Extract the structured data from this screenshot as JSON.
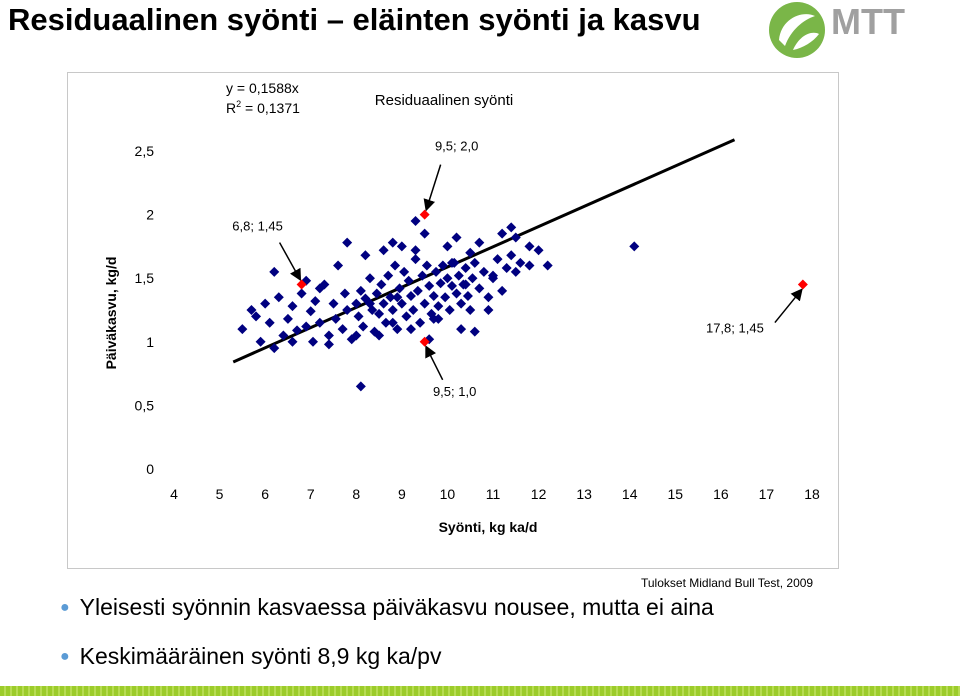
{
  "slide": {
    "title": "Residuaalinen syönti – eläinten syönti ja kasvu",
    "logo_text": "MTT",
    "source_note": "Tulokset Midland Bull Test, 2009",
    "bullets": [
      "Yleisesti syönnin kasvaessa päiväkasvu nousee, mutta ei aina",
      "Keskimääräinen syönti 8,9 kg ka/pv"
    ]
  },
  "colors": {
    "points": "#000080",
    "highlight": "#ff0000",
    "trendline": "#000000",
    "bullet": "#5b9bd5",
    "logo_green": "#7ab648",
    "logo_gray": "#a0a0a0",
    "bottom_bar": "#9ccc2a"
  },
  "chart_data": {
    "type": "scatter",
    "title": "Residuaalinen syönti",
    "xlabel": "Syönti, kg ka/d",
    "ylabel": "Päiväkasvu, kg/d",
    "xlim": [
      4,
      18
    ],
    "ylim": [
      0,
      2.5
    ],
    "x_ticks": [
      "4",
      "5",
      "6",
      "7",
      "8",
      "9",
      "10",
      "11",
      "12",
      "13",
      "14",
      "15",
      "16",
      "17",
      "18"
    ],
    "y_ticks": [
      "0",
      "0,5",
      "1",
      "1,5",
      "2",
      "2,5"
    ],
    "equation": "y = 0,1588x",
    "r_squared_label": "R",
    "r_squared_sup": "2",
    "r_squared_value": " = 0,1371",
    "trendline_slope": 0.1588,
    "grid": false,
    "legend": "none",
    "points": [
      [
        5.5,
        1.1
      ],
      [
        5.7,
        1.25
      ],
      [
        5.9,
        1.0
      ],
      [
        5.8,
        1.2
      ],
      [
        6.0,
        1.3
      ],
      [
        6.1,
        1.15
      ],
      [
        6.2,
        0.95
      ],
      [
        6.3,
        1.35
      ],
      [
        6.4,
        1.05
      ],
      [
        6.5,
        1.18
      ],
      [
        6.6,
        1.28
      ],
      [
        6.7,
        1.09
      ],
      [
        6.8,
        1.38
      ],
      [
        6.9,
        1.12
      ],
      [
        7.0,
        1.24
      ],
      [
        7.05,
        1.0
      ],
      [
        7.1,
        1.32
      ],
      [
        7.2,
        1.15
      ],
      [
        7.3,
        1.45
      ],
      [
        7.4,
        1.05
      ],
      [
        7.5,
        1.3
      ],
      [
        7.55,
        1.18
      ],
      [
        7.6,
        1.6
      ],
      [
        7.7,
        1.1
      ],
      [
        7.75,
        1.38
      ],
      [
        7.8,
        1.25
      ],
      [
        7.9,
        1.02
      ],
      [
        8.0,
        1.3
      ],
      [
        8.05,
        1.2
      ],
      [
        8.1,
        1.4
      ],
      [
        8.15,
        1.12
      ],
      [
        8.2,
        1.34
      ],
      [
        8.3,
        1.5
      ],
      [
        8.35,
        1.25
      ],
      [
        8.4,
        1.08
      ],
      [
        8.45,
        1.38
      ],
      [
        8.5,
        1.22
      ],
      [
        8.55,
        1.45
      ],
      [
        8.6,
        1.3
      ],
      [
        8.65,
        1.15
      ],
      [
        8.7,
        1.52
      ],
      [
        8.75,
        1.35
      ],
      [
        8.8,
        1.25
      ],
      [
        8.85,
        1.6
      ],
      [
        8.9,
        1.1
      ],
      [
        8.95,
        1.42
      ],
      [
        9.0,
        1.3
      ],
      [
        9.05,
        1.55
      ],
      [
        9.1,
        1.2
      ],
      [
        9.15,
        1.48
      ],
      [
        9.2,
        1.36
      ],
      [
        9.25,
        1.25
      ],
      [
        9.3,
        1.65
      ],
      [
        9.35,
        1.4
      ],
      [
        9.4,
        1.15
      ],
      [
        9.45,
        1.52
      ],
      [
        9.5,
        1.3
      ],
      [
        9.55,
        1.6
      ],
      [
        9.6,
        1.44
      ],
      [
        9.65,
        1.22
      ],
      [
        9.7,
        1.36
      ],
      [
        9.75,
        1.55
      ],
      [
        9.8,
        1.28
      ],
      [
        9.85,
        1.46
      ],
      [
        9.9,
        1.6
      ],
      [
        9.95,
        1.35
      ],
      [
        10.0,
        1.5
      ],
      [
        10.05,
        1.25
      ],
      [
        10.1,
        1.44
      ],
      [
        10.15,
        1.62
      ],
      [
        10.2,
        1.38
      ],
      [
        10.25,
        1.52
      ],
      [
        10.3,
        1.3
      ],
      [
        10.35,
        1.45
      ],
      [
        10.4,
        1.58
      ],
      [
        10.45,
        1.36
      ],
      [
        10.5,
        1.25
      ],
      [
        10.55,
        1.5
      ],
      [
        10.6,
        1.62
      ],
      [
        10.7,
        1.42
      ],
      [
        10.8,
        1.55
      ],
      [
        10.9,
        1.35
      ],
      [
        11.0,
        1.5
      ],
      [
        11.1,
        1.65
      ],
      [
        11.2,
        1.4
      ],
      [
        11.3,
        1.58
      ],
      [
        11.4,
        1.68
      ],
      [
        11.5,
        1.55
      ],
      [
        11.6,
        1.62
      ],
      [
        11.8,
        1.6
      ],
      [
        8.2,
        1.68
      ],
      [
        8.6,
        1.72
      ],
      [
        8.8,
        1.78
      ],
      [
        9.0,
        1.75
      ],
      [
        9.3,
        1.72
      ],
      [
        9.5,
        1.85
      ],
      [
        10.0,
        1.75
      ],
      [
        10.2,
        1.82
      ],
      [
        10.5,
        1.7
      ],
      [
        10.7,
        1.78
      ],
      [
        11.2,
        1.85
      ],
      [
        11.4,
        1.9
      ],
      [
        11.5,
        1.82
      ],
      [
        11.8,
        1.75
      ],
      [
        12.0,
        1.72
      ],
      [
        8.5,
        1.05
      ],
      [
        8.8,
        1.15
      ],
      [
        9.2,
        1.1
      ],
      [
        9.8,
        1.18
      ],
      [
        10.3,
        1.1
      ],
      [
        6.2,
        1.55
      ],
      [
        7.8,
        1.78
      ],
      [
        6.9,
        1.48
      ],
      [
        9.3,
        1.95
      ],
      [
        8.1,
        0.65
      ],
      [
        12.2,
        1.6
      ],
      [
        14.1,
        1.75
      ],
      [
        7.4,
        0.98
      ],
      [
        8.0,
        1.05
      ],
      [
        9.6,
        1.02
      ],
      [
        10.6,
        1.08
      ],
      [
        7.2,
        1.42
      ],
      [
        6.6,
        1.0
      ],
      [
        10.9,
        1.25
      ],
      [
        11.0,
        1.52
      ],
      [
        8.9,
        1.35
      ],
      [
        9.7,
        1.18
      ],
      [
        10.1,
        1.62
      ],
      [
        10.4,
        1.45
      ],
      [
        8.3,
        1.3
      ]
    ],
    "highlighted_points": [
      {
        "x": 6.8,
        "y": 1.45,
        "label": "6,8; 1,45"
      },
      {
        "x": 9.5,
        "y": 2.0,
        "label": "9,5; 2,0"
      },
      {
        "x": 9.5,
        "y": 1.0,
        "label": "9,5; 1,0"
      },
      {
        "x": 17.8,
        "y": 1.45,
        "label": "17,8; 1,45"
      }
    ]
  }
}
